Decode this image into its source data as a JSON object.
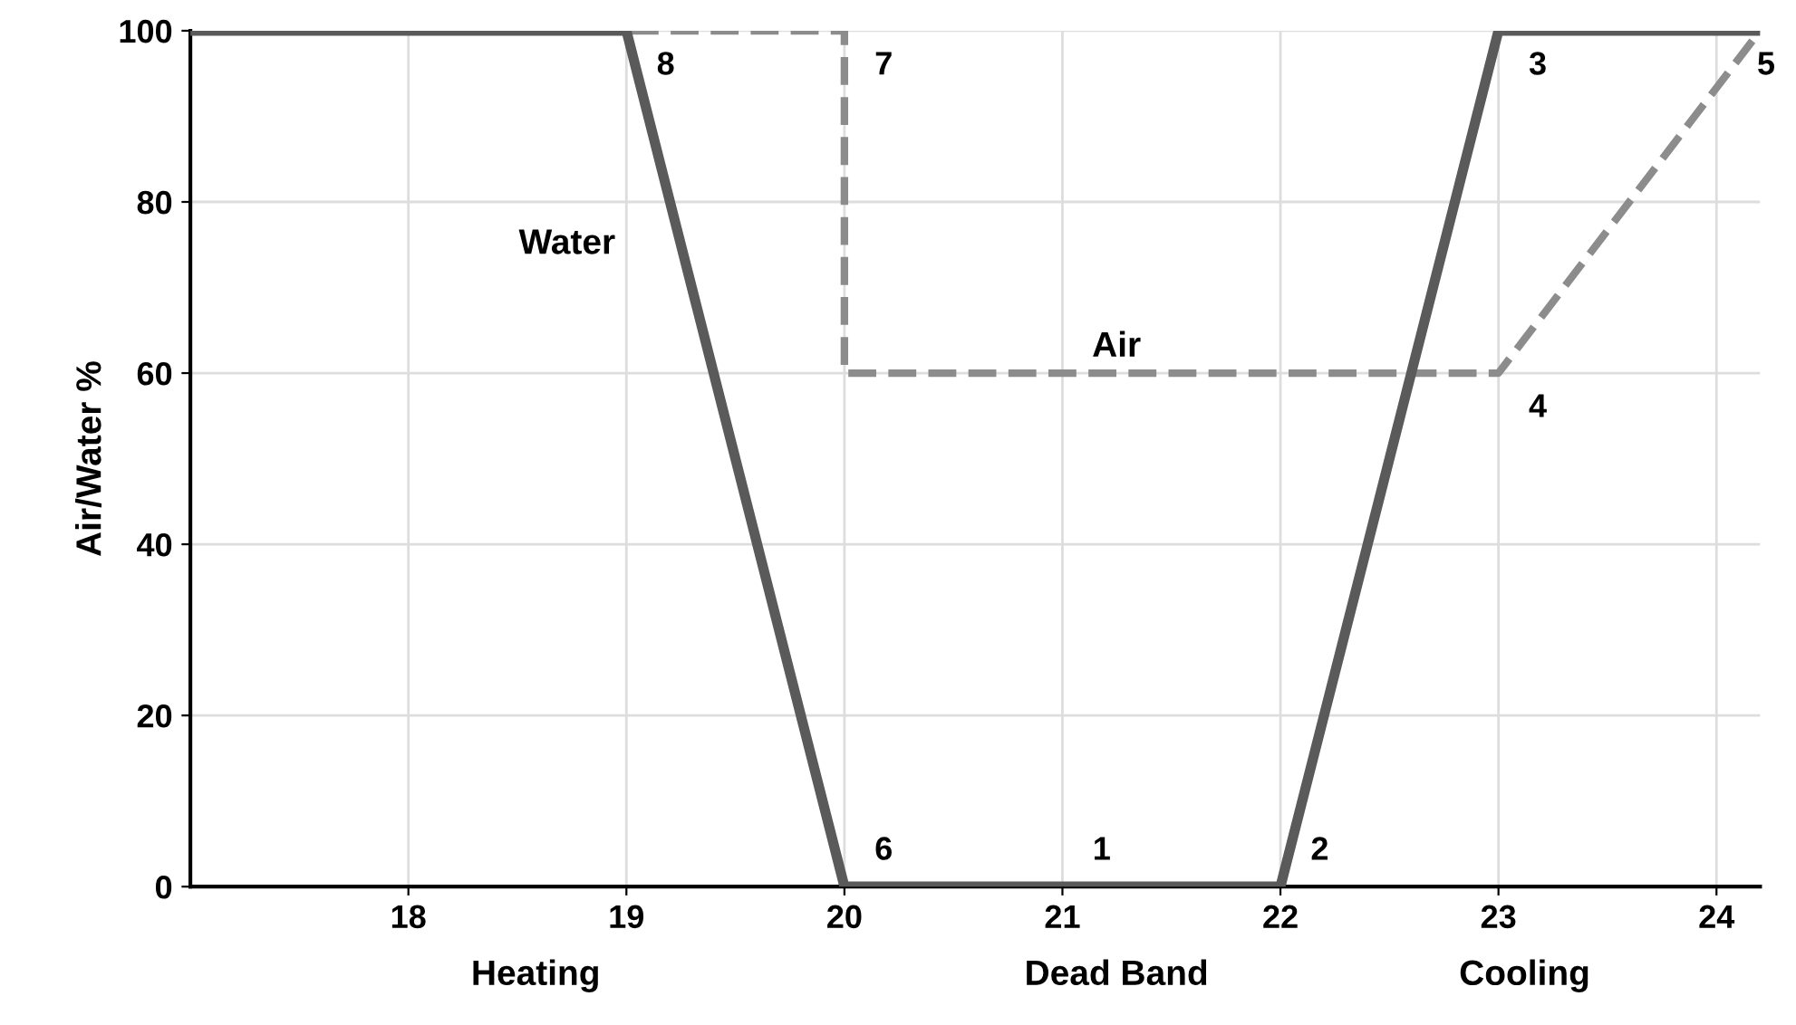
{
  "chart_data": {
    "type": "line",
    "ylabel": "Air/Water %",
    "xlim": [
      17,
      24.2
    ],
    "ylim": [
      0,
      100
    ],
    "xticks": [
      18,
      19,
      20,
      21,
      22,
      23,
      24
    ],
    "yticks": [
      0,
      20,
      40,
      60,
      80,
      100
    ],
    "grid": true,
    "marker": "none",
    "series": [
      {
        "name": "Water",
        "color": "#5a5a5a",
        "line_style": "solid",
        "x": [
          17,
          19,
          20,
          22,
          23,
          24.2
        ],
        "values": [
          100,
          100,
          0,
          0,
          100,
          100
        ]
      },
      {
        "name": "Air",
        "color": "#8c8c8c",
        "line_style": "dashed",
        "x": [
          17,
          20,
          20,
          23,
          24.2
        ],
        "values": [
          100,
          100,
          60,
          60,
          100
        ]
      }
    ],
    "annotations": [
      {
        "text": "1",
        "x": 21,
        "y": 0
      },
      {
        "text": "2",
        "x": 22,
        "y": 0
      },
      {
        "text": "3",
        "x": 23,
        "y": 100
      },
      {
        "text": "4",
        "x": 23,
        "y": 60
      },
      {
        "text": "5",
        "x": 24.2,
        "y": 100
      },
      {
        "text": "6",
        "x": 20,
        "y": 0
      },
      {
        "text": "7",
        "x": 20,
        "y": 100
      },
      {
        "text": "8",
        "x": 19,
        "y": 100
      },
      "Heating",
      "Dead Band",
      "Cooling"
    ]
  }
}
